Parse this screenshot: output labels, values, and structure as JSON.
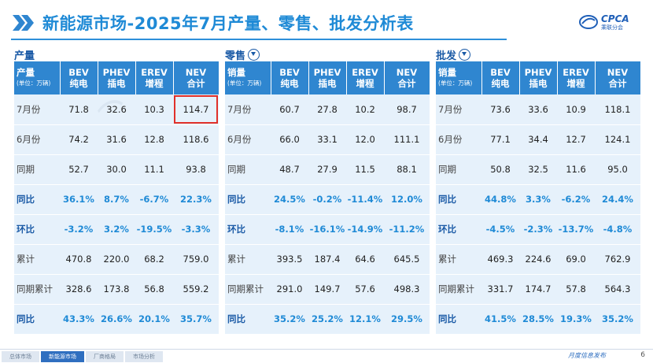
{
  "title": "新能源市场-2025年7月产量、零售、批发分析表",
  "logo": {
    "main": "CPCA",
    "sub": "乘联分会"
  },
  "sections": [
    {
      "label": "产量",
      "has_icon": false
    },
    {
      "label": "零售",
      "has_icon": true
    },
    {
      "label": "批发",
      "has_icon": true
    }
  ],
  "columns": [
    {
      "top": "BEV",
      "bottom": "纯电"
    },
    {
      "top": "PHEV",
      "bottom": "插电"
    },
    {
      "top": "EREV",
      "bottom": "增程"
    },
    {
      "top": "NEV",
      "bottom": "合计"
    }
  ],
  "unit": "(单位：万辆)",
  "tables": [
    {
      "head": "产量",
      "rows": [
        {
          "label": "7月份",
          "values": [
            "71.8",
            "32.6",
            "10.3",
            "114.7"
          ],
          "pct": false
        },
        {
          "label": "6月份",
          "values": [
            "74.2",
            "31.6",
            "12.8",
            "118.6"
          ],
          "pct": false
        },
        {
          "label": "同期",
          "values": [
            "52.7",
            "30.0",
            "11.1",
            "93.8"
          ],
          "pct": false
        },
        {
          "label": "同比",
          "values": [
            "36.1%",
            "8.7%",
            "-6.7%",
            "22.3%"
          ],
          "pct": true
        },
        {
          "label": "环比",
          "values": [
            "-3.2%",
            "3.2%",
            "-19.5%",
            "-3.3%"
          ],
          "pct": true
        },
        {
          "label": "累计",
          "values": [
            "470.8",
            "220.0",
            "68.2",
            "759.0"
          ],
          "pct": false
        },
        {
          "label": "同期累计",
          "values": [
            "328.6",
            "173.8",
            "56.8",
            "559.2"
          ],
          "pct": false
        },
        {
          "label": "同比",
          "values": [
            "43.3%",
            "26.6%",
            "20.1%",
            "35.7%"
          ],
          "pct": true
        }
      ]
    },
    {
      "head": "销量",
      "rows": [
        {
          "label": "7月份",
          "values": [
            "60.7",
            "27.8",
            "10.2",
            "98.7"
          ],
          "pct": false
        },
        {
          "label": "6月份",
          "values": [
            "66.0",
            "33.1",
            "12.0",
            "111.1"
          ],
          "pct": false
        },
        {
          "label": "同期",
          "values": [
            "48.7",
            "27.9",
            "11.5",
            "88.1"
          ],
          "pct": false
        },
        {
          "label": "同比",
          "values": [
            "24.5%",
            "-0.2%",
            "-11.4%",
            "12.0%"
          ],
          "pct": true
        },
        {
          "label": "环比",
          "values": [
            "-8.1%",
            "-16.1%",
            "-14.9%",
            "-11.2%"
          ],
          "pct": true
        },
        {
          "label": "累计",
          "values": [
            "393.5",
            "187.4",
            "64.6",
            "645.5"
          ],
          "pct": false
        },
        {
          "label": "同期累计",
          "values": [
            "291.0",
            "149.7",
            "57.6",
            "498.3"
          ],
          "pct": false
        },
        {
          "label": "同比",
          "values": [
            "35.2%",
            "25.2%",
            "12.1%",
            "29.5%"
          ],
          "pct": true
        }
      ]
    },
    {
      "head": "销量",
      "rows": [
        {
          "label": "7月份",
          "values": [
            "73.6",
            "33.6",
            "10.9",
            "118.1"
          ],
          "pct": false
        },
        {
          "label": "6月份",
          "values": [
            "77.1",
            "34.4",
            "12.7",
            "124.1"
          ],
          "pct": false
        },
        {
          "label": "同期",
          "values": [
            "50.8",
            "32.5",
            "11.6",
            "95.0"
          ],
          "pct": false
        },
        {
          "label": "同比",
          "values": [
            "44.8%",
            "3.3%",
            "-6.2%",
            "24.4%"
          ],
          "pct": true
        },
        {
          "label": "环比",
          "values": [
            "-4.5%",
            "-2.3%",
            "-13.7%",
            "-4.8%"
          ],
          "pct": true
        },
        {
          "label": "累计",
          "values": [
            "469.3",
            "224.6",
            "69.0",
            "762.9"
          ],
          "pct": false
        },
        {
          "label": "同期累计",
          "values": [
            "331.7",
            "174.7",
            "57.8",
            "564.3"
          ],
          "pct": false
        },
        {
          "label": "同比",
          "values": [
            "41.5%",
            "28.5%",
            "19.3%",
            "35.2%"
          ],
          "pct": true
        }
      ]
    }
  ],
  "footer": {
    "tabs": [
      {
        "label": "总体市场",
        "active": false
      },
      {
        "label": "新能源市场",
        "active": true
      },
      {
        "label": "厂商格局",
        "active": false
      },
      {
        "label": "市场分析",
        "active": false
      }
    ],
    "right_text": "月度信息发布",
    "page": "6"
  },
  "colors": {
    "accent": "#2f86d0",
    "panel_bg": "#e6f1fb",
    "highlight": "#e0302a"
  }
}
